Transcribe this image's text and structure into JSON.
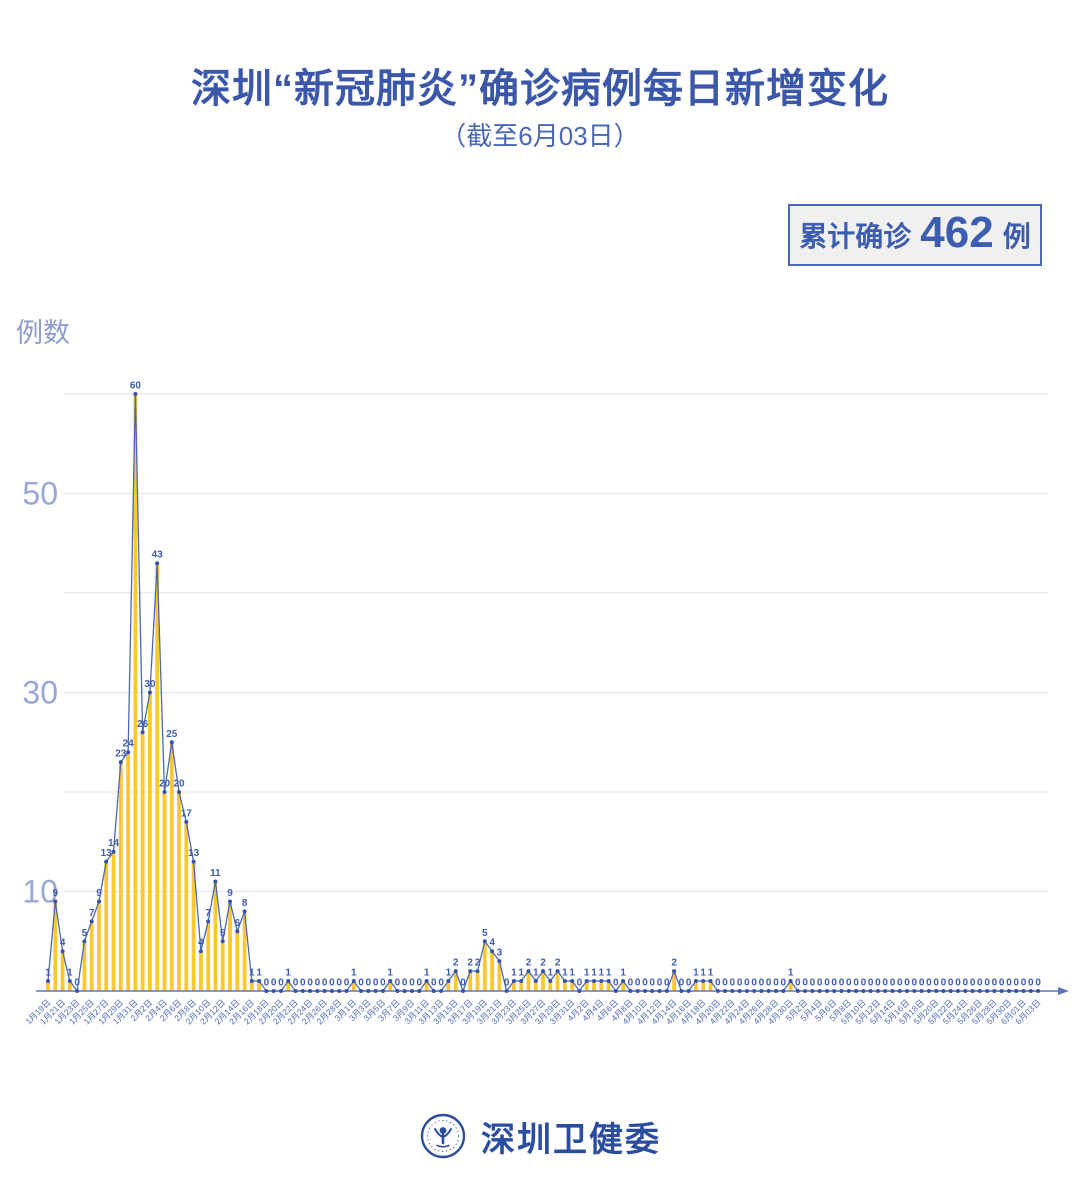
{
  "title": "深圳“新冠肺炎”确诊病例每日新增变化",
  "subtitle": "（截至6月03日）",
  "badge": {
    "prefix": "累计确诊",
    "value": "462",
    "suffix": "例"
  },
  "footer": {
    "org": "深圳卫健委"
  },
  "chart_data": {
    "type": "bar",
    "overlay": "line",
    "title": "深圳“新冠肺炎”确诊病例每日新增变化",
    "xlabel": "",
    "ylabel": "例数",
    "ylim": [
      0,
      62
    ],
    "grid": true,
    "gridlines": [
      10,
      20,
      30,
      40,
      50,
      60
    ],
    "yticks_labeled": [
      10,
      30,
      50
    ],
    "tick_every": 2,
    "x": [
      "1月19日",
      "1月20日",
      "1月21日",
      "1月22日",
      "1月23日",
      "1月24日",
      "1月25日",
      "1月26日",
      "1月27日",
      "1月28日",
      "1月29日",
      "1月30日",
      "1月31日",
      "2月1日",
      "2月2日",
      "2月3日",
      "2月4日",
      "2月5日",
      "2月6日",
      "2月7日",
      "2月8日",
      "2月9日",
      "2月10日",
      "2月11日",
      "2月12日",
      "2月13日",
      "2月14日",
      "2月15日",
      "2月16日",
      "2月17日",
      "2月18日",
      "2月19日",
      "2月20日",
      "2月21日",
      "2月22日",
      "2月23日",
      "2月24日",
      "2月25日",
      "2月26日",
      "2月27日",
      "2月28日",
      "2月29日",
      "3月1日",
      "3月2日",
      "3月3日",
      "3月4日",
      "3月5日",
      "3月6日",
      "3月7日",
      "3月8日",
      "3月9日",
      "3月10日",
      "3月11日",
      "3月12日",
      "3月13日",
      "3月14日",
      "3月15日",
      "3月16日",
      "3月17日",
      "3月18日",
      "3月19日",
      "3月20日",
      "3月21日",
      "3月22日",
      "3月23日",
      "3月24日",
      "3月25日",
      "3月26日",
      "3月27日",
      "3月28日",
      "3月29日",
      "3月30日",
      "3月31日",
      "4月1日",
      "4月2日",
      "4月3日",
      "4月4日",
      "4月5日",
      "4月6日",
      "4月7日",
      "4月8日",
      "4月9日",
      "4月10日",
      "4月11日",
      "4月12日",
      "4月13日",
      "4月14日",
      "4月15日",
      "4月16日",
      "4月17日",
      "4月18日",
      "4月19日",
      "4月20日",
      "4月21日",
      "4月22日",
      "4月23日",
      "4月24日",
      "4月25日",
      "4月26日",
      "4月27日",
      "4月28日",
      "4月29日",
      "4月30日",
      "5月1日",
      "5月2日",
      "5月3日",
      "5月4日",
      "5月5日",
      "5月6日",
      "5月7日",
      "5月8日",
      "5月9日",
      "5月10日",
      "5月11日",
      "5月12日",
      "5月13日",
      "5月14日",
      "5月15日",
      "5月16日",
      "5月17日",
      "5月18日",
      "5月19日",
      "5月20日",
      "5月21日",
      "5月22日",
      "5月23日",
      "5月24日",
      "5月25日",
      "5月26日",
      "5月27日",
      "5月28日",
      "5月29日",
      "5月30日",
      "5月31日",
      "6月01日",
      "6月02日",
      "6月03日"
    ],
    "values": [
      1,
      9,
      4,
      1,
      0,
      5,
      7,
      9,
      13,
      14,
      23,
      24,
      60,
      26,
      30,
      43,
      20,
      25,
      20,
      17,
      13,
      4,
      7,
      11,
      5,
      9,
      6,
      8,
      1,
      1,
      0,
      0,
      0,
      1,
      0,
      0,
      0,
      0,
      0,
      0,
      0,
      0,
      1,
      0,
      0,
      0,
      0,
      1,
      0,
      0,
      0,
      0,
      1,
      0,
      0,
      1,
      2,
      0,
      2,
      2,
      5,
      4,
      3,
      0,
      1,
      1,
      2,
      1,
      2,
      1,
      2,
      1,
      1,
      0,
      1,
      1,
      1,
      1,
      0,
      1,
      0,
      0,
      0,
      0,
      0,
      0,
      2,
      0,
      0,
      1,
      1,
      1,
      0,
      0,
      0,
      0,
      0,
      0,
      0,
      0,
      0,
      0,
      1,
      0,
      0,
      0,
      0,
      0,
      0,
      0,
      0,
      0,
      0,
      0,
      0,
      0,
      0,
      0,
      0,
      0,
      0,
      0,
      0,
      0,
      0,
      0,
      0,
      0,
      0,
      0,
      0,
      0,
      0,
      0,
      0,
      0,
      0
    ],
    "cumulative_total": 462,
    "colors": {
      "bar": "#fdc732",
      "line": "#4a69b4",
      "dot": "#3353ad",
      "value_label": "#3f5cad",
      "x_label": "#4f6ab8",
      "y_label": "#98a5d5",
      "axis_title": "#8f9cce",
      "grid": "#e7e7ee",
      "axis": "#5b76bb",
      "title": "#3b57a9",
      "badge_border": "#4a69b4",
      "badge_bg": "#f0f0ef"
    }
  }
}
